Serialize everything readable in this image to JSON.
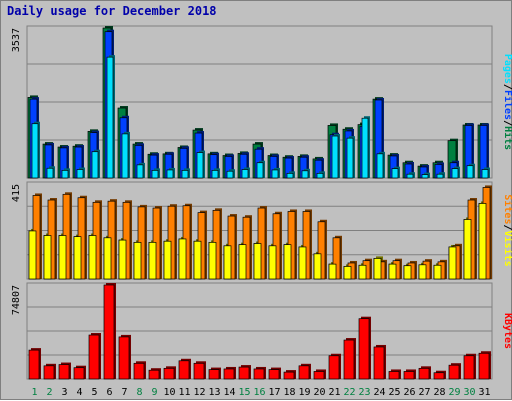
{
  "title": "Daily usage for December 2018",
  "colors": {
    "background": "#c0c0c0",
    "panel": "#c0c0c0",
    "grid": "#808080",
    "hits": "#008040",
    "files": "#0040ff",
    "pages": "#00e0ff",
    "visits": "#ffff00",
    "sites": "#ff8000",
    "kbytes": "#ff0000",
    "title": "#0000aa",
    "weekend_day": "#008040",
    "weekday": "#000000"
  },
  "legends": {
    "top": [
      {
        "text": "Pages",
        "color": "#00e0ff"
      },
      {
        "text": "/",
        "color": "#000000"
      },
      {
        "text": "Files",
        "color": "#0040ff"
      },
      {
        "text": "/",
        "color": "#000000"
      },
      {
        "text": "Hits",
        "color": "#008040"
      }
    ],
    "middle": [
      {
        "text": "Sites",
        "color": "#ff8000"
      },
      {
        "text": "/",
        "color": "#000000"
      },
      {
        "text": "Visits",
        "color": "#ffff00"
      }
    ],
    "bottom": [
      {
        "text": "KBytes",
        "color": "#ff0000"
      }
    ]
  },
  "chart_data": [
    {
      "type": "bar",
      "title": "Daily usage for December 2018",
      "panel": "Pages / Files / Hits",
      "ymax_label": "3537",
      "ylim": [
        0,
        3537
      ],
      "grid": true,
      "categories": [
        "1",
        "2",
        "3",
        "4",
        "5",
        "6",
        "7",
        "8",
        "9",
        "10",
        "11",
        "12",
        "13",
        "14",
        "15",
        "16",
        "17",
        "18",
        "19",
        "20",
        "21",
        "22",
        "23",
        "24",
        "25",
        "26",
        "27",
        "28",
        "29",
        "30",
        "31"
      ],
      "weekend_days": [
        "1",
        "2",
        "8",
        "9",
        "15",
        "16",
        "22",
        "23",
        "29",
        "30"
      ],
      "series": [
        {
          "name": "Hits",
          "values": [
            1900,
            800,
            730,
            750,
            1100,
            3537,
            1650,
            800,
            560,
            570,
            720,
            1130,
            570,
            530,
            580,
            800,
            530,
            490,
            510,
            450,
            1240,
            1150,
            1260,
            1860,
            540,
            360,
            280,
            360,
            880,
            1250,
            1250
          ]
        },
        {
          "name": "Files",
          "values": [
            1860,
            780,
            710,
            730,
            1070,
            3450,
            1420,
            770,
            540,
            560,
            700,
            1060,
            550,
            510,
            560,
            680,
            510,
            470,
            490,
            420,
            1020,
            1110,
            1220,
            1840,
            520,
            330,
            260,
            320,
            360,
            1240,
            1240
          ]
        },
        {
          "name": "Pages",
          "values": [
            1280,
            230,
            180,
            200,
            620,
            2850,
            1040,
            310,
            180,
            190,
            180,
            600,
            180,
            160,
            200,
            360,
            190,
            110,
            170,
            110,
            990,
            940,
            1410,
            570,
            220,
            90,
            80,
            90,
            220,
            290,
            200
          ]
        }
      ]
    },
    {
      "type": "bar",
      "panel": "Sites / Visits",
      "ymax_label": "415",
      "ylim": [
        0,
        415
      ],
      "grid": true,
      "categories": [
        "1",
        "2",
        "3",
        "4",
        "5",
        "6",
        "7",
        "8",
        "9",
        "10",
        "11",
        "12",
        "13",
        "14",
        "15",
        "16",
        "17",
        "18",
        "19",
        "20",
        "21",
        "22",
        "23",
        "24",
        "25",
        "26",
        "27",
        "28",
        "29",
        "30",
        "31"
      ],
      "series": [
        {
          "name": "Sites",
          "values": [
            365,
            345,
            370,
            355,
            335,
            340,
            335,
            315,
            310,
            318,
            320,
            290,
            300,
            275,
            270,
            310,
            285,
            295,
            295,
            250,
            180,
            70,
            80,
            75,
            80,
            70,
            78,
            75,
            145,
            345,
            400
          ]
        },
        {
          "name": "Visits",
          "values": [
            210,
            190,
            190,
            185,
            190,
            180,
            170,
            160,
            160,
            165,
            175,
            165,
            160,
            145,
            150,
            155,
            145,
            150,
            140,
            110,
            65,
            55,
            60,
            90,
            65,
            58,
            62,
            60,
            140,
            260,
            330
          ]
        }
      ]
    },
    {
      "type": "bar",
      "panel": "KBytes",
      "ymax_label": "74807",
      "ylim": [
        0,
        74807
      ],
      "grid": true,
      "categories": [
        "1",
        "2",
        "3",
        "4",
        "5",
        "6",
        "7",
        "8",
        "9",
        "10",
        "11",
        "12",
        "13",
        "14",
        "15",
        "16",
        "17",
        "18",
        "19",
        "20",
        "21",
        "22",
        "23",
        "24",
        "25",
        "26",
        "27",
        "28",
        "29",
        "30",
        "31"
      ],
      "series": [
        {
          "name": "KBytes",
          "values": [
            23000,
            10500,
            11500,
            9000,
            35000,
            74807,
            33500,
            12500,
            7000,
            8500,
            14500,
            12500,
            7500,
            8000,
            9500,
            8000,
            7500,
            5500,
            10500,
            6000,
            18500,
            31000,
            48000,
            25500,
            6000,
            6000,
            8500,
            5000,
            11000,
            18500,
            20500
          ]
        }
      ]
    }
  ]
}
